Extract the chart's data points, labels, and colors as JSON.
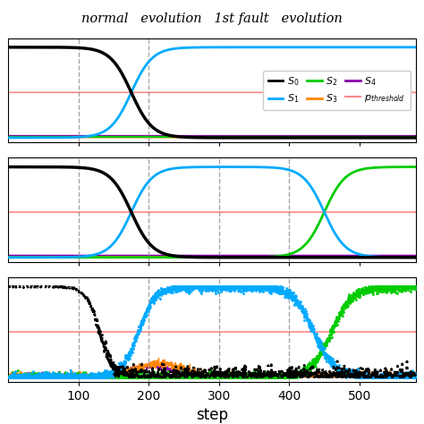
{
  "title": "normal   evolution   1st fault   evolution",
  "xlabel": "step",
  "xlim": [
    0,
    580
  ],
  "x_ticks": [
    100,
    200,
    300,
    400,
    500
  ],
  "dashed_lines": [
    100,
    200,
    300,
    400
  ],
  "p_threshold": 0.5,
  "colors": {
    "S0": "#000000",
    "S1": "#00aaff",
    "S2": "#00cc00",
    "S3": "#ff8800",
    "S4": "#8800aa",
    "p_threshold": "#ff8888"
  },
  "legend_labels": [
    "S_0",
    "S_1",
    "S_2",
    "S_3",
    "S_4",
    "p_{threshold}"
  ]
}
